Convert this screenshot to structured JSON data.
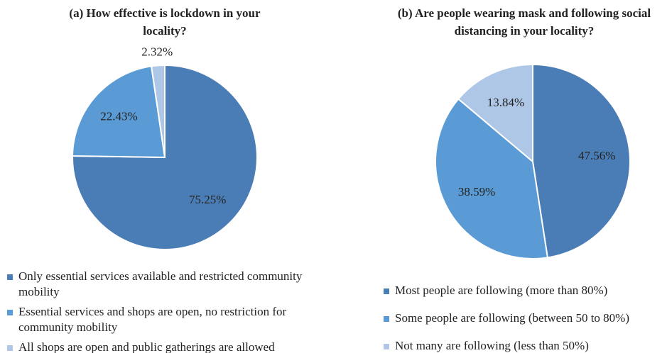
{
  "chart_data": [
    {
      "type": "pie",
      "title": "(a) How effective is lockdown in your locality?",
      "categories": [
        "Only essential services available and restricted community mobility",
        "Essential services and shops are open, no restriction for community mobility",
        "All shops are open and public gatherings are allowed"
      ],
      "values": [
        75.25,
        22.43,
        2.32
      ],
      "value_labels": [
        "75.25%",
        "22.43%",
        "2.32%"
      ],
      "colors": [
        "#4a7db5",
        "#5b9bd5",
        "#afc7e6"
      ]
    },
    {
      "type": "pie",
      "title": "(b) Are people wearing mask and following social distancing in your locality?",
      "categories": [
        "Most people are following (more than 80%)",
        "Some people are following (between 50 to 80%)",
        "Not many are following (less than 50%)"
      ],
      "values": [
        47.56,
        38.59,
        13.84
      ],
      "value_labels": [
        "47.56%",
        "38.59%",
        "13.84%"
      ],
      "colors": [
        "#4a7db5",
        "#5b9bd5",
        "#afc7e6"
      ]
    }
  ]
}
